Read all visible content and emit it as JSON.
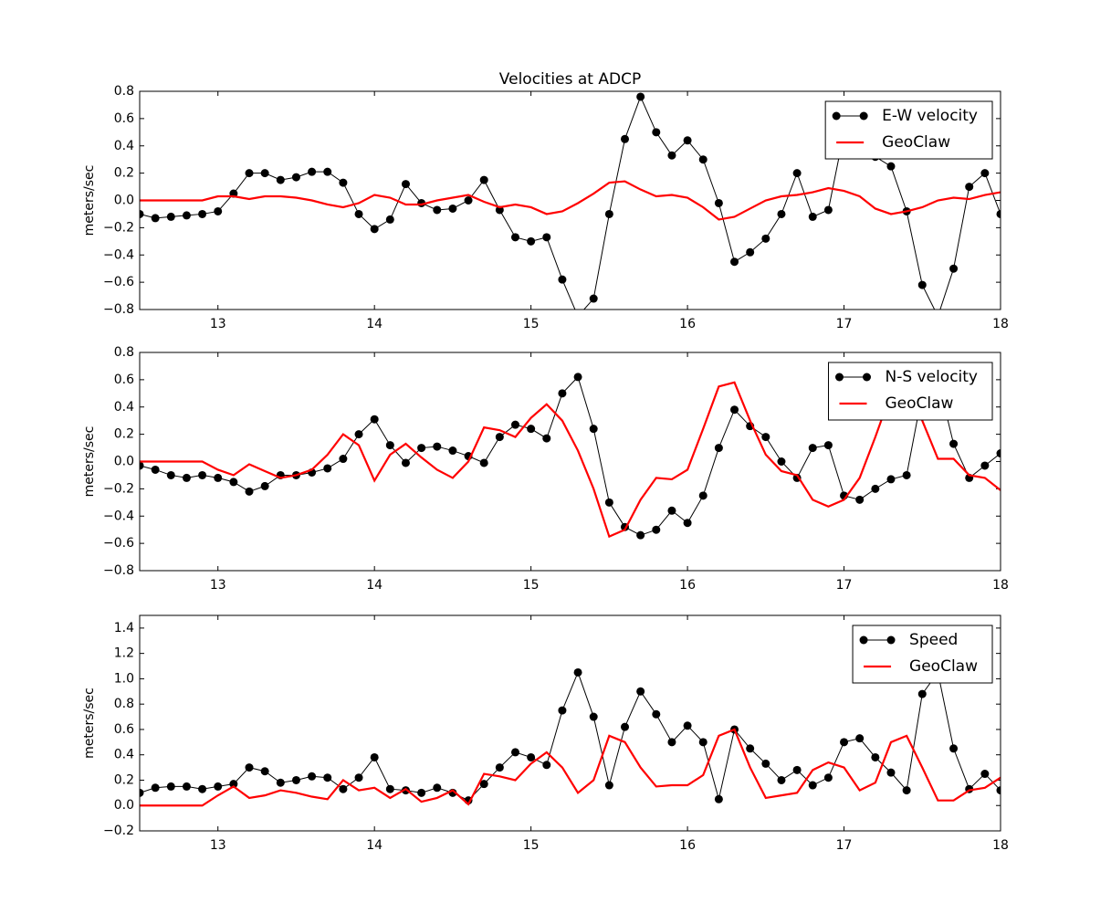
{
  "chart_data": [
    {
      "type": "line",
      "title": "Velocities at ADCP",
      "ylabel": "meters/sec",
      "legend": "upper right",
      "xlim": [
        12.5,
        18
      ],
      "xticks": [
        13,
        14,
        15,
        16,
        17,
        18
      ],
      "ylim": [
        -0.8,
        0.8
      ],
      "yticks": [
        {
          "value": -0.8,
          "label": "−0.8"
        },
        {
          "value": -0.6,
          "label": "−0.6"
        },
        {
          "value": -0.4,
          "label": "−0.4"
        },
        {
          "value": -0.2,
          "label": "−0.2"
        },
        {
          "value": 0,
          "label": "0.0"
        },
        0.2,
        0.4,
        0.6,
        0.8
      ],
      "x": [
        12.5,
        12.6,
        12.7,
        12.8,
        12.9,
        13.0,
        13.1,
        13.2,
        13.3,
        13.4,
        13.5,
        13.6,
        13.7,
        13.8,
        13.9,
        14.0,
        14.1,
        14.2,
        14.3,
        14.4,
        14.5,
        14.6,
        14.7,
        14.8,
        14.9,
        15.0,
        15.1,
        15.2,
        15.3,
        15.4,
        15.5,
        15.6,
        15.7,
        15.8,
        15.9,
        16.0,
        16.1,
        16.2,
        16.3,
        16.4,
        16.5,
        16.6,
        16.7,
        16.8,
        16.9,
        17.0,
        17.1,
        17.2,
        17.3,
        17.4,
        17.5,
        17.6,
        17.7,
        17.8,
        17.9,
        18.0
      ],
      "series": [
        {
          "name": "E-W velocity",
          "color": "#000000",
          "marker": "o",
          "values": [
            -0.1,
            -0.13,
            -0.12,
            -0.11,
            -0.1,
            -0.08,
            0.05,
            0.2,
            0.2,
            0.15,
            0.17,
            0.21,
            0.21,
            0.13,
            -0.1,
            -0.21,
            -0.14,
            0.12,
            -0.02,
            -0.07,
            -0.06,
            0.0,
            0.15,
            -0.07,
            -0.27,
            -0.3,
            -0.27,
            -0.58,
            -0.85,
            -0.72,
            -0.1,
            0.45,
            0.76,
            0.5,
            0.33,
            0.44,
            0.3,
            -0.02,
            -0.45,
            -0.38,
            -0.28,
            -0.1,
            0.2,
            -0.12,
            -0.07,
            0.5,
            0.6,
            0.32,
            0.25,
            -0.08,
            -0.62,
            -0.85,
            -0.5,
            0.1,
            0.2,
            -0.1
          ]
        },
        {
          "name": "GeoClaw",
          "color": "#ff0000",
          "values": [
            0,
            0,
            0,
            0,
            0,
            0.03,
            0.03,
            0.01,
            0.03,
            0.03,
            0.02,
            0.0,
            -0.03,
            -0.05,
            -0.02,
            0.04,
            0.02,
            -0.03,
            -0.03,
            0.0,
            0.02,
            0.04,
            -0.01,
            -0.05,
            -0.03,
            -0.05,
            -0.1,
            -0.08,
            -0.02,
            0.05,
            0.13,
            0.14,
            0.08,
            0.03,
            0.04,
            0.02,
            -0.05,
            -0.14,
            -0.12,
            -0.06,
            0.0,
            0.03,
            0.04,
            0.06,
            0.09,
            0.07,
            0.03,
            -0.06,
            -0.1,
            -0.08,
            -0.05,
            0.0,
            0.02,
            0.01,
            0.04,
            0.06
          ]
        }
      ]
    },
    {
      "type": "line",
      "ylabel": "meters/sec",
      "legend": "upper right",
      "xlim": [
        12.5,
        18
      ],
      "xticks": [
        13,
        14,
        15,
        16,
        17,
        18
      ],
      "ylim": [
        -0.8,
        0.8
      ],
      "yticks": [
        {
          "value": -0.8,
          "label": "−0.8"
        },
        {
          "value": -0.6,
          "label": "−0.6"
        },
        {
          "value": -0.4,
          "label": "−0.4"
        },
        {
          "value": -0.2,
          "label": "−0.2"
        },
        {
          "value": 0,
          "label": "0.0"
        },
        0.2,
        0.4,
        0.6,
        0.8
      ],
      "x": [
        12.5,
        12.6,
        12.7,
        12.8,
        12.9,
        13.0,
        13.1,
        13.2,
        13.3,
        13.4,
        13.5,
        13.6,
        13.7,
        13.8,
        13.9,
        14.0,
        14.1,
        14.2,
        14.3,
        14.4,
        14.5,
        14.6,
        14.7,
        14.8,
        14.9,
        15.0,
        15.1,
        15.2,
        15.3,
        15.4,
        15.5,
        15.6,
        15.7,
        15.8,
        15.9,
        16.0,
        16.1,
        16.2,
        16.3,
        16.4,
        16.5,
        16.6,
        16.7,
        16.8,
        16.9,
        17.0,
        17.1,
        17.2,
        17.3,
        17.4,
        17.5,
        17.6,
        17.7,
        17.8,
        17.9,
        18.0
      ],
      "series": [
        {
          "name": "N-S velocity",
          "color": "#000000",
          "marker": "o",
          "values": [
            -0.03,
            -0.06,
            -0.1,
            -0.12,
            -0.1,
            -0.12,
            -0.15,
            -0.22,
            -0.18,
            -0.1,
            -0.1,
            -0.08,
            -0.05,
            0.02,
            0.2,
            0.31,
            0.12,
            -0.01,
            0.1,
            0.11,
            0.08,
            0.04,
            -0.01,
            0.18,
            0.27,
            0.24,
            0.17,
            0.5,
            0.62,
            0.24,
            -0.3,
            -0.48,
            -0.54,
            -0.5,
            -0.36,
            -0.45,
            -0.25,
            0.1,
            0.38,
            0.26,
            0.18,
            0.0,
            -0.12,
            0.1,
            0.12,
            -0.25,
            -0.28,
            -0.2,
            -0.13,
            -0.1,
            0.5,
            0.6,
            0.13,
            -0.12,
            -0.03,
            0.06
          ]
        },
        {
          "name": "GeoClaw",
          "color": "#ff0000",
          "values": [
            0,
            0,
            0,
            0,
            0,
            -0.06,
            -0.1,
            -0.02,
            -0.07,
            -0.12,
            -0.1,
            -0.06,
            0.05,
            0.2,
            0.12,
            -0.14,
            0.05,
            0.13,
            0.03,
            -0.06,
            -0.12,
            0.0,
            0.25,
            0.23,
            0.18,
            0.32,
            0.42,
            0.3,
            0.08,
            -0.2,
            -0.55,
            -0.5,
            -0.28,
            -0.12,
            -0.13,
            -0.06,
            0.24,
            0.55,
            0.58,
            0.3,
            0.05,
            -0.07,
            -0.1,
            -0.28,
            -0.33,
            -0.28,
            -0.12,
            0.18,
            0.5,
            0.62,
            0.3,
            0.02,
            0.02,
            -0.1,
            -0.12,
            -0.21
          ]
        }
      ]
    },
    {
      "type": "line",
      "ylabel": "meters/sec",
      "legend": "upper right",
      "xlim": [
        12.5,
        18
      ],
      "xticks": [
        13,
        14,
        15,
        16,
        17,
        18
      ],
      "ylim": [
        -0.2,
        1.5
      ],
      "yticks": [
        {
          "value": -0.2,
          "label": "−0.2"
        },
        {
          "value": 0,
          "label": "0.0"
        },
        0.2,
        0.4,
        0.6,
        0.8,
        {
          "value": 1,
          "label": "1.0"
        },
        1.2,
        1.4
      ],
      "x": [
        12.5,
        12.6,
        12.7,
        12.8,
        12.9,
        13.0,
        13.1,
        13.2,
        13.3,
        13.4,
        13.5,
        13.6,
        13.7,
        13.8,
        13.9,
        14.0,
        14.1,
        14.2,
        14.3,
        14.4,
        14.5,
        14.6,
        14.7,
        14.8,
        14.9,
        15.0,
        15.1,
        15.2,
        15.3,
        15.4,
        15.5,
        15.6,
        15.7,
        15.8,
        15.9,
        16.0,
        16.1,
        16.2,
        16.3,
        16.4,
        16.5,
        16.6,
        16.7,
        16.8,
        16.9,
        17.0,
        17.1,
        17.2,
        17.3,
        17.4,
        17.5,
        17.6,
        17.7,
        17.8,
        17.9,
        18.0
      ],
      "series": [
        {
          "name": "Speed",
          "color": "#000000",
          "marker": "o",
          "values": [
            0.1,
            0.14,
            0.15,
            0.15,
            0.13,
            0.15,
            0.17,
            0.3,
            0.27,
            0.18,
            0.2,
            0.23,
            0.22,
            0.13,
            0.22,
            0.38,
            0.13,
            0.12,
            0.1,
            0.14,
            0.1,
            0.04,
            0.17,
            0.3,
            0.42,
            0.38,
            0.32,
            0.75,
            1.05,
            0.7,
            0.16,
            0.62,
            0.9,
            0.72,
            0.5,
            0.63,
            0.5,
            0.05,
            0.6,
            0.45,
            0.33,
            0.2,
            0.28,
            0.16,
            0.22,
            0.5,
            0.53,
            0.38,
            0.26,
            0.12,
            0.88,
            1.05,
            0.45,
            0.13,
            0.25,
            0.12
          ]
        },
        {
          "name": "GeoClaw",
          "color": "#ff0000",
          "values": [
            0,
            0,
            0,
            0,
            0,
            0.08,
            0.15,
            0.06,
            0.08,
            0.12,
            0.1,
            0.07,
            0.05,
            0.2,
            0.12,
            0.14,
            0.06,
            0.13,
            0.03,
            0.06,
            0.12,
            0.01,
            0.25,
            0.23,
            0.2,
            0.33,
            0.42,
            0.3,
            0.1,
            0.2,
            0.55,
            0.5,
            0.3,
            0.15,
            0.16,
            0.16,
            0.24,
            0.55,
            0.6,
            0.3,
            0.06,
            0.08,
            0.1,
            0.28,
            0.34,
            0.3,
            0.12,
            0.18,
            0.5,
            0.55,
            0.3,
            0.04,
            0.04,
            0.12,
            0.14,
            0.22
          ]
        }
      ]
    }
  ]
}
